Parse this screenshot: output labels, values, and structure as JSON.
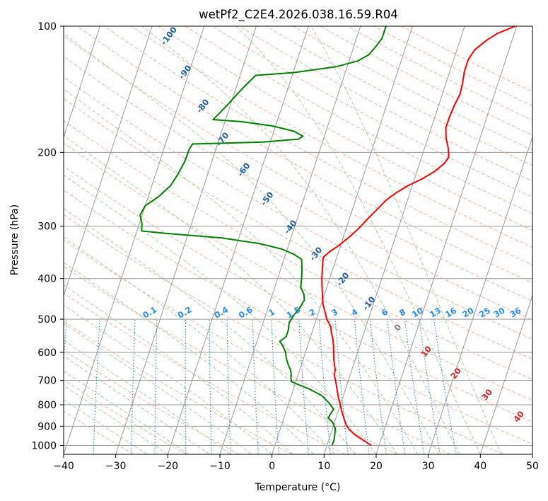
{
  "chart_data": {
    "type": "line",
    "title": "wetPf2_C2E4.2026.038.16.59.R04",
    "xlabel": "Temperature (°C)",
    "ylabel": "Pressure (hPa)",
    "xlim": [
      -40,
      50
    ],
    "ylim": [
      1050,
      100
    ],
    "y_scale": "log",
    "x_ticks": [
      -40,
      -30,
      -20,
      -10,
      0,
      10,
      20,
      30,
      40,
      50
    ],
    "y_ticks": [
      100,
      200,
      300,
      400,
      500,
      600,
      700,
      800,
      900,
      1000
    ],
    "grid": true,
    "series": [
      {
        "color": "#ff0000",
        "points": [
          [
            18.5,
            1000
          ],
          [
            16.5,
            970
          ],
          [
            14.5,
            940
          ],
          [
            13.0,
            910
          ],
          [
            12.3,
            890
          ],
          [
            11.5,
            860
          ],
          [
            10.7,
            830
          ],
          [
            10.0,
            800
          ],
          [
            9.2,
            770
          ],
          [
            8.5,
            740
          ],
          [
            7.8,
            710
          ],
          [
            7.0,
            680
          ],
          [
            6.8,
            660
          ],
          [
            6.3,
            640
          ],
          [
            5.8,
            620
          ],
          [
            5.4,
            600
          ],
          [
            5.0,
            580
          ],
          [
            4.5,
            560
          ],
          [
            3.8,
            540
          ],
          [
            3.2,
            520
          ],
          [
            2.0,
            500
          ],
          [
            1.2,
            480
          ],
          [
            0.3,
            460
          ],
          [
            -0.3,
            440
          ],
          [
            -0.9,
            420
          ],
          [
            -1.5,
            400
          ],
          [
            -2.0,
            380
          ],
          [
            -2.5,
            360
          ],
          [
            -2.5,
            355
          ],
          [
            -1.7,
            345
          ],
          [
            -0.5,
            335
          ],
          [
            1.0,
            320
          ],
          [
            2.3,
            305
          ],
          [
            3.4,
            290
          ],
          [
            4.6,
            275
          ],
          [
            5.9,
            260
          ],
          [
            7.3,
            250
          ],
          [
            9.2,
            240
          ],
          [
            11.3,
            232
          ],
          [
            13.4,
            222
          ],
          [
            14.8,
            212
          ],
          [
            15.2,
            205
          ],
          [
            14.5,
            195
          ],
          [
            13.5,
            185
          ],
          [
            12.8,
            175
          ],
          [
            12.8,
            165
          ],
          [
            13.0,
            155
          ],
          [
            13.4,
            145
          ],
          [
            13.2,
            137
          ],
          [
            12.8,
            128
          ],
          [
            12.8,
            120
          ],
          [
            13.4,
            114
          ],
          [
            15.1,
            108
          ],
          [
            16.8,
            104
          ],
          [
            19.7,
            100
          ]
        ]
      },
      {
        "color": "#008000",
        "points": [
          [
            11.0,
            1000
          ],
          [
            11.0,
            970
          ],
          [
            10.8,
            940
          ],
          [
            10.5,
            910
          ],
          [
            9.6,
            880
          ],
          [
            8.5,
            860
          ],
          [
            8.7,
            840
          ],
          [
            9.0,
            820
          ],
          [
            7.6,
            790
          ],
          [
            5.8,
            760
          ],
          [
            3.2,
            735
          ],
          [
            1.2,
            720
          ],
          [
            -0.8,
            705
          ],
          [
            -1.2,
            690
          ],
          [
            -1.3,
            680
          ],
          [
            -1.5,
            670
          ],
          [
            -1.8,
            660
          ],
          [
            -2.6,
            640
          ],
          [
            -3.3,
            620
          ],
          [
            -3.8,
            600
          ],
          [
            -4.7,
            580
          ],
          [
            -5.6,
            565
          ],
          [
            -4.7,
            550
          ],
          [
            -4.7,
            530
          ],
          [
            -5.0,
            510
          ],
          [
            -4.6,
            490
          ],
          [
            -3.9,
            470
          ],
          [
            -3.5,
            450
          ],
          [
            -4.0,
            435
          ],
          [
            -5.0,
            420
          ],
          [
            -5.4,
            400
          ],
          [
            -5.9,
            380
          ],
          [
            -6.6,
            360
          ],
          [
            -8.4,
            350
          ],
          [
            -11.1,
            340
          ],
          [
            -15.7,
            330
          ],
          [
            -23.3,
            320
          ],
          [
            -34.3,
            312
          ],
          [
            -39.1,
            308
          ],
          [
            -39.5,
            296
          ],
          [
            -40.4,
            282
          ],
          [
            -40.0,
            268
          ],
          [
            -38.0,
            255
          ],
          [
            -36.4,
            240
          ],
          [
            -35.7,
            225
          ],
          [
            -35.2,
            210
          ],
          [
            -35.1,
            196
          ],
          [
            -34.8,
            191
          ],
          [
            -21.4,
            189
          ],
          [
            -14.8,
            186
          ],
          [
            -14.1,
            183
          ],
          [
            -16.2,
            178
          ],
          [
            -20.6,
            173
          ],
          [
            -26.7,
            169
          ],
          [
            -32.4,
            167
          ],
          [
            -31.4,
            160
          ],
          [
            -30.3,
            152
          ],
          [
            -29.2,
            144
          ],
          [
            -28.1,
            137
          ],
          [
            -27.0,
            131
          ],
          [
            -19.8,
            129
          ],
          [
            -12.2,
            125
          ],
          [
            -8.3,
            121
          ],
          [
            -6.6,
            117
          ],
          [
            -5.8,
            112
          ],
          [
            -5.1,
            107
          ],
          [
            -5.1,
            100
          ]
        ]
      }
    ],
    "annotations": {
      "dry_adiabat_labels": [
        "-100",
        "-90",
        "-80",
        "-70",
        "-60",
        "-50",
        "-40",
        "-30",
        "-20",
        "-10",
        "0",
        "10",
        "20",
        "30",
        "40"
      ],
      "mixing_ratio_labels": [
        "0.1",
        "0.2",
        "0.4",
        "0.6",
        "1",
        "1.5",
        "2",
        "3",
        "4",
        "6",
        "8",
        "10",
        "13",
        "16",
        "20",
        "25",
        "30",
        "36"
      ]
    },
    "colors": {
      "isotherm": "#9a9a9a",
      "dry_adiabat": "#f6b2a0",
      "moist_adiabat": "#a6d3a6",
      "mixing_ratio": "#1f78d8",
      "dry_label": "#1f5fa0",
      "mixing_label": "#2b8cf0",
      "warm_label": "#d62728",
      "zero_label": "#808080",
      "dewpoint": "#008000",
      "temperature": "#ff0000"
    }
  }
}
